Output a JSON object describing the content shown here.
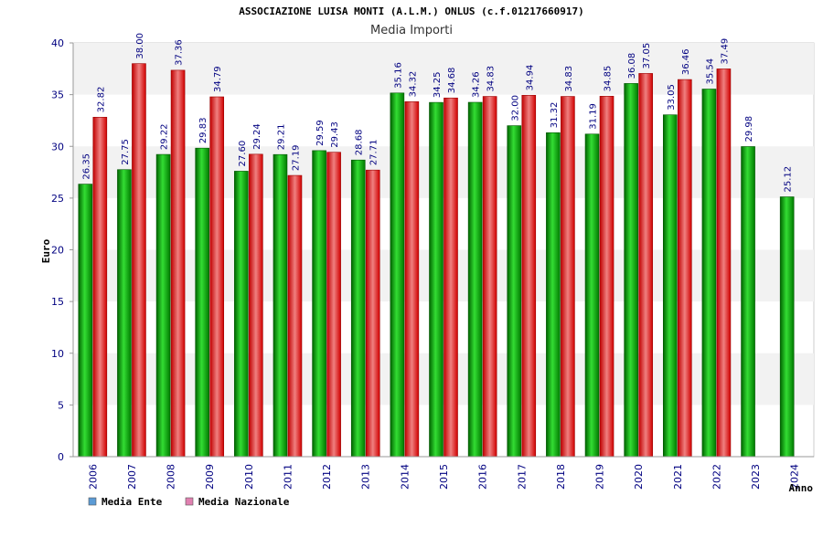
{
  "chart_data": {
    "type": "bar",
    "title": "ASSOCIAZIONE LUISA MONTI (A.L.M.) ONLUS (c.f.01217660917)",
    "subtitle": "Media Importi",
    "xlabel": "Anno",
    "ylabel": "Euro",
    "ylim": [
      0,
      40
    ],
    "yticks": [
      0,
      5,
      10,
      15,
      20,
      25,
      30,
      35,
      40
    ],
    "grid": "horizontal-bands",
    "legend_position": "bottom-left",
    "categories": [
      "2006",
      "2007",
      "2008",
      "2009",
      "2010",
      "2011",
      "2012",
      "2013",
      "2014",
      "2015",
      "2016",
      "2017",
      "2018",
      "2019",
      "2020",
      "2021",
      "2022",
      "2023",
      "2024"
    ],
    "series": [
      {
        "name": "Media Ente",
        "color": "#00a000",
        "legend_color": "#5b9bd5",
        "values": [
          26.35,
          27.75,
          29.22,
          29.83,
          27.6,
          29.21,
          29.59,
          28.68,
          35.16,
          34.25,
          34.26,
          32.0,
          31.32,
          31.19,
          36.08,
          33.05,
          35.54,
          29.98,
          25.12
        ],
        "labels": [
          "26.35",
          "27.75",
          "29.22",
          "29.83",
          "27.60",
          "29.21",
          "29.59",
          "28.68",
          "35.16",
          "34.25",
          "34.26",
          "32.00",
          "31.32",
          "31.19",
          "36.08",
          "33.05",
          "35.54",
          "29.98",
          "25.12"
        ]
      },
      {
        "name": "Media Nazionale",
        "color": "#e00000",
        "legend_color": "#e080b0",
        "values": [
          32.82,
          38.0,
          37.36,
          34.79,
          29.24,
          27.19,
          29.43,
          27.71,
          34.32,
          34.68,
          34.83,
          34.94,
          34.83,
          34.85,
          37.05,
          36.46,
          37.49,
          null,
          null
        ],
        "labels": [
          "32.82",
          "38.00",
          "37.36",
          "34.79",
          "29.24",
          "27.19",
          "29.43",
          "27.71",
          "34.32",
          "34.68",
          "34.83",
          "34.94",
          "34.83",
          "34.85",
          "37.05",
          "36.46",
          "37.49",
          "",
          ""
        ]
      }
    ]
  }
}
